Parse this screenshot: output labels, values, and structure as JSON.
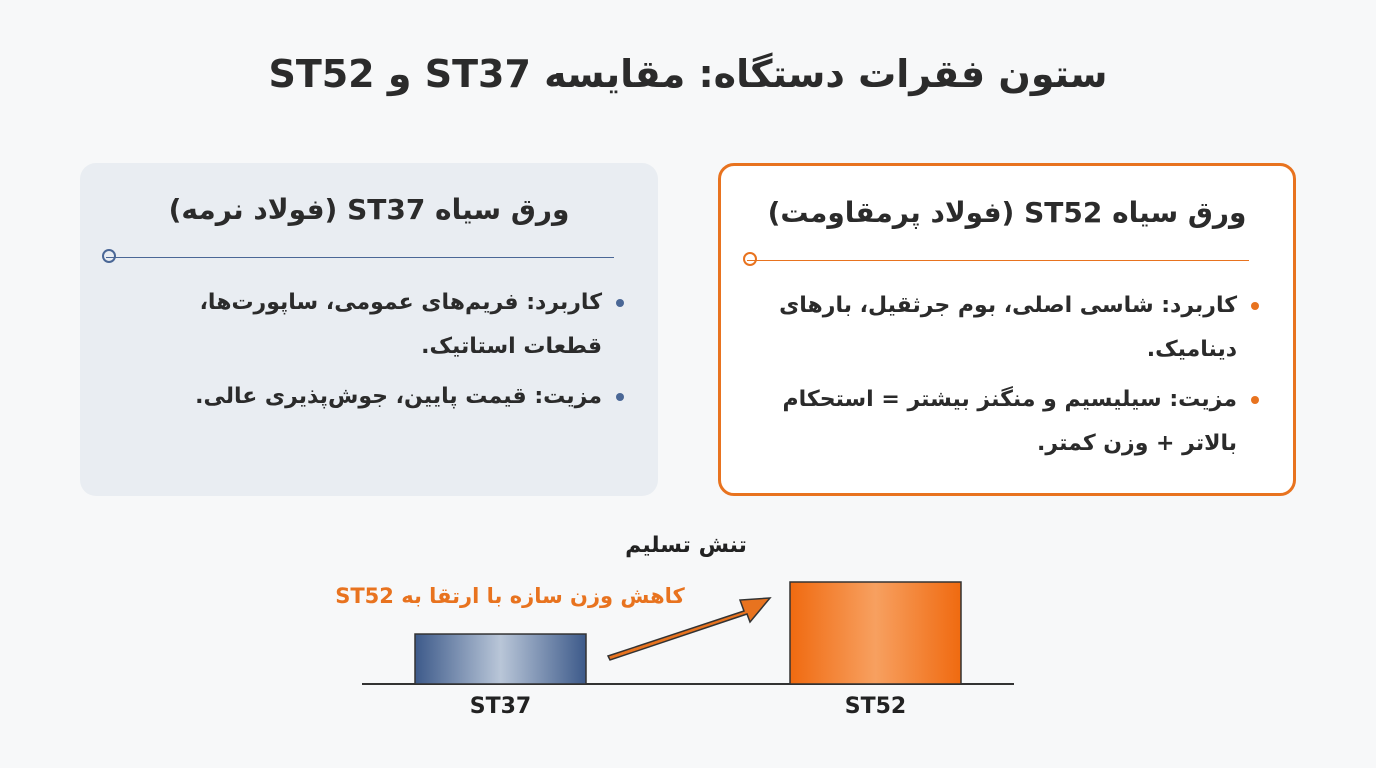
{
  "header": {
    "title": "ستون فقرات دستگاه: مقایسه ST37 و ST52"
  },
  "cards": [
    {
      "title": "ورق سیاه ST37 (فولاد نرمه)",
      "items": [
        "کاربرد: فریم‌های عمومی، ساپورت‌ها، قطعات استاتیک.",
        "مزیت: قیمت پایین، جوش‌پذیری عالی."
      ]
    },
    {
      "title": "ورق سیاه ST52 (فولاد پرمقاومت)",
      "items": [
        "کاربرد: شاسی اصلی، بوم جرثقیل، بارهای دینامیک.",
        "مزیت: سیلیسیم و منگنز بیشتر = استحکام بالاتر + وزن کمتر."
      ]
    }
  ],
  "chart_data": {
    "type": "bar",
    "title": "تنش تسلیم",
    "annotation": "کاهش وزن سازه با ارتقا به ST52",
    "categories": [
      "ST37",
      "ST52"
    ],
    "values": [
      49,
      100
    ],
    "colors": [
      "#4a6796",
      "#f0731e"
    ]
  }
}
